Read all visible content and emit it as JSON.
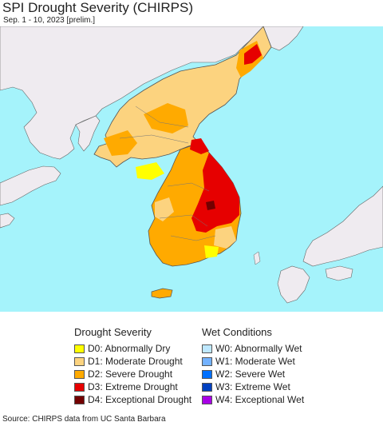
{
  "title": "SPI Drought Severity (CHIRPS)",
  "subtitle": "Sep. 1 - 10, 2023 [prelim.]",
  "legend": {
    "drought": {
      "heading": "Drought Severity",
      "items": [
        {
          "label": "D0: Abnormally Dry",
          "color": "#ffff00"
        },
        {
          "label": "D1: Moderate Drought",
          "color": "#fcd37f"
        },
        {
          "label": "D2: Severe Drought",
          "color": "#ffaa00"
        },
        {
          "label": "D3: Extreme Drought",
          "color": "#e60000"
        },
        {
          "label": "D4: Exceptional Drought",
          "color": "#730000"
        }
      ]
    },
    "wet": {
      "heading": "Wet Conditions",
      "items": [
        {
          "label": "W0: Abnormally Wet",
          "color": "#bee8ff"
        },
        {
          "label": "W1: Moderate Wet",
          "color": "#73b2ff"
        },
        {
          "label": "W2: Severe Wet",
          "color": "#0070ff"
        },
        {
          "label": "W3: Extreme Wet",
          "color": "#0040c0"
        },
        {
          "label": "W4: Exceptional Wet",
          "color": "#a800e6"
        }
      ]
    }
  },
  "map": {
    "sea_color": "#a5f3fb",
    "land_color": "#efebf0",
    "border_color": "#555555"
  },
  "source": "Source: CHIRPS data from UC Santa Barbara"
}
